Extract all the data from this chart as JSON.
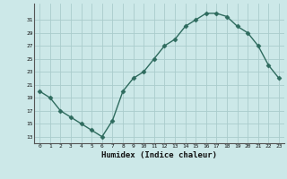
{
  "x": [
    0,
    1,
    2,
    3,
    4,
    5,
    6,
    7,
    8,
    9,
    10,
    11,
    12,
    13,
    14,
    15,
    16,
    17,
    18,
    19,
    20,
    21,
    22,
    23
  ],
  "y": [
    20,
    19,
    17,
    16,
    15,
    14,
    13,
    15.5,
    20,
    22,
    23,
    25,
    27,
    28,
    30,
    31,
    32,
    32,
    31.5,
    30,
    29,
    27,
    24,
    22
  ],
  "line_color": "#2e6b5e",
  "marker_color": "#2e6b5e",
  "bg_color": "#cce8e8",
  "grid_color": "#aacccc",
  "xlabel": "Humidex (Indice chaleur)",
  "ylabel_ticks": [
    13,
    15,
    17,
    19,
    21,
    23,
    25,
    27,
    29,
    31
  ],
  "xlim": [
    -0.5,
    23.5
  ],
  "ylim": [
    12.0,
    33.5
  ],
  "title": ""
}
